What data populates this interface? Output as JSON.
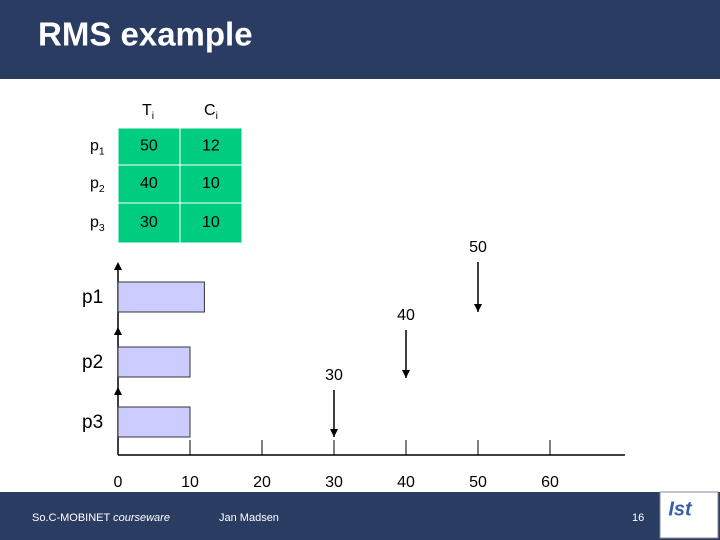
{
  "header": {
    "title": "RMS example"
  },
  "table": {
    "columns": [
      {
        "name": "T",
        "sub": "i"
      },
      {
        "name": "C",
        "sub": "i"
      }
    ],
    "rows": [
      {
        "name": "p",
        "sub": "1",
        "T": 50,
        "C": 12
      },
      {
        "name": "p",
        "sub": "2",
        "T": 40,
        "C": 10
      },
      {
        "name": "p",
        "sub": "3",
        "T": 30,
        "C": 10
      }
    ]
  },
  "timeline": {
    "processes": [
      "p1",
      "p2",
      "p3"
    ],
    "ticks": [
      0,
      10,
      20,
      30,
      40,
      50,
      60
    ],
    "deadlines": [
      50,
      40,
      30
    ]
  },
  "footer": {
    "left": "So.C-MOBINET",
    "left_italic": "courseware",
    "center": "Jan Madsen",
    "page": "16",
    "logo": "Ist"
  }
}
